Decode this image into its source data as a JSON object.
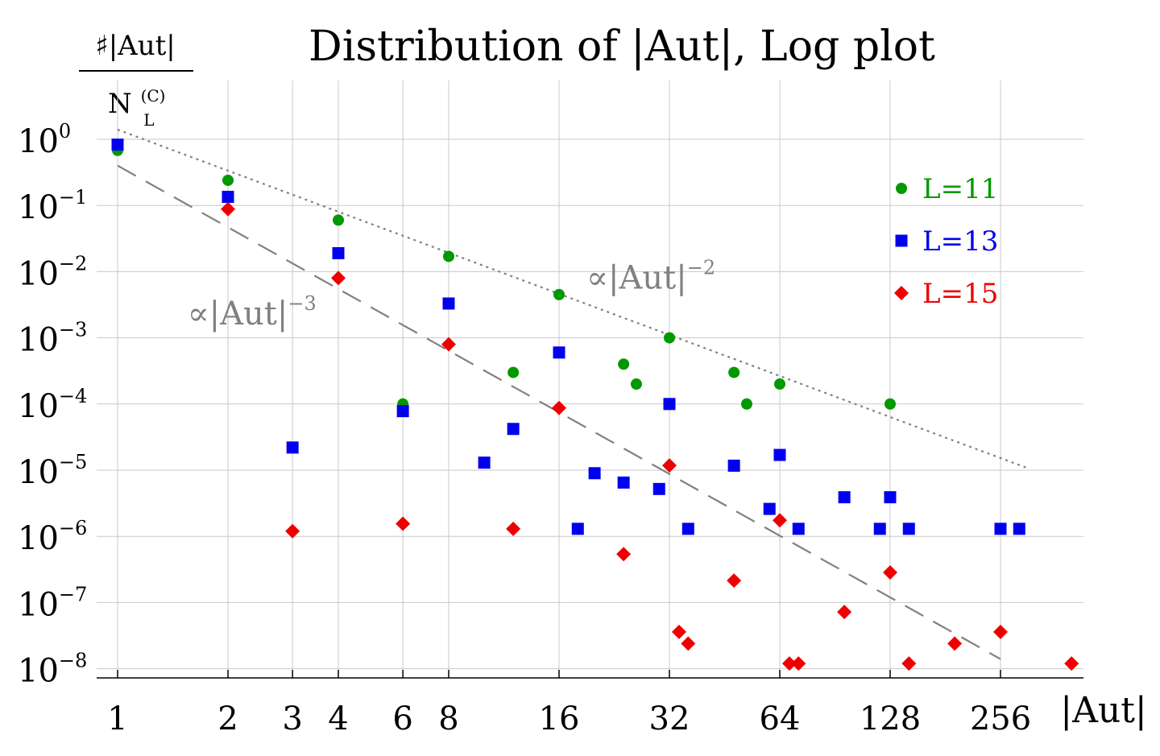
{
  "chart_data": {
    "type": "scatter",
    "title": "Distribution of |Aut|, Log plot",
    "ylabel": {
      "numerator": "♯|Aut|",
      "denominator_base": "N",
      "denominator_sup": "(C)",
      "denominator_sub": "L"
    },
    "xlabel": "|Aut|",
    "x_scale": "log2",
    "y_scale": "log10",
    "xlim": [
      0.95,
      420
    ],
    "ylim": [
      4.5e-09,
      4
    ],
    "x_ticks": [
      1,
      2,
      3,
      4,
      6,
      8,
      16,
      32,
      64,
      128,
      256
    ],
    "x_tick_labels": [
      "1",
      "2",
      "3",
      "4",
      "6",
      "8",
      "16",
      "32",
      "64",
      "128",
      "256"
    ],
    "y_ticks": [
      {
        "value": 1,
        "base": "10",
        "exp": "0"
      },
      {
        "value": 0.1,
        "base": "10",
        "exp": "−1"
      },
      {
        "value": 0.01,
        "base": "10",
        "exp": "−2"
      },
      {
        "value": 0.001,
        "base": "10",
        "exp": "−3"
      },
      {
        "value": 0.0001,
        "base": "10",
        "exp": "−4"
      },
      {
        "value": 1e-05,
        "base": "10",
        "exp": "−5"
      },
      {
        "value": 1e-06,
        "base": "10",
        "exp": "−6"
      },
      {
        "value": 1e-07,
        "base": "10",
        "exp": "−7"
      },
      {
        "value": 1e-08,
        "base": "10",
        "exp": "−8"
      }
    ],
    "grid": true,
    "legend_position": "top-right",
    "series": [
      {
        "name": "L=11",
        "color": "#009900",
        "marker": "circle",
        "points": [
          [
            1,
            0.68
          ],
          [
            2,
            0.24
          ],
          [
            4,
            0.06
          ],
          [
            6,
            0.0001
          ],
          [
            8,
            0.017
          ],
          [
            12,
            0.0003
          ],
          [
            16,
            0.0045
          ],
          [
            24,
            0.0004
          ],
          [
            26,
            0.0002
          ],
          [
            32,
            0.001
          ],
          [
            48,
            0.0003
          ],
          [
            52,
            0.0001
          ],
          [
            64,
            0.0002
          ],
          [
            128,
            0.0001
          ]
        ]
      },
      {
        "name": "L=13",
        "color": "#0000ee",
        "marker": "square",
        "points": [
          [
            1,
            0.83
          ],
          [
            2,
            0.135
          ],
          [
            3,
            2.2e-05
          ],
          [
            4,
            0.019
          ],
          [
            6,
            7.8e-05
          ],
          [
            8,
            0.0033
          ],
          [
            10,
            1.3e-05
          ],
          [
            12,
            4.2e-05
          ],
          [
            16,
            0.0006
          ],
          [
            18,
            1.3e-06
          ],
          [
            20,
            9e-06
          ],
          [
            24,
            6.5e-06
          ],
          [
            30,
            5.2e-06
          ],
          [
            32,
            0.0001
          ],
          [
            36,
            1.3e-06
          ],
          [
            48,
            1.17e-05
          ],
          [
            60,
            2.6e-06
          ],
          [
            64,
            1.7e-05
          ],
          [
            72,
            1.3e-06
          ],
          [
            96,
            3.9e-06
          ],
          [
            120,
            1.3e-06
          ],
          [
            128,
            3.9e-06
          ],
          [
            144,
            1.3e-06
          ],
          [
            256,
            1.3e-06
          ],
          [
            288,
            1.3e-06
          ]
        ]
      },
      {
        "name": "L=15",
        "color": "#ee0000",
        "marker": "diamond",
        "points": [
          [
            2,
            0.088
          ],
          [
            3,
            1.2e-06
          ],
          [
            4,
            0.008
          ],
          [
            6,
            1.55e-06
          ],
          [
            8,
            0.0008
          ],
          [
            12,
            1.3e-06
          ],
          [
            16,
            8.7e-05
          ],
          [
            24,
            5.4e-07
          ],
          [
            32,
            1.18e-05
          ],
          [
            34,
            3.6e-08
          ],
          [
            36,
            2.4e-08
          ],
          [
            48,
            2.15e-07
          ],
          [
            64,
            1.75e-06
          ],
          [
            68,
            1.2e-08
          ],
          [
            72,
            1.2e-08
          ],
          [
            96,
            7.2e-08
          ],
          [
            128,
            2.85e-07
          ],
          [
            144,
            1.2e-08
          ],
          [
            192,
            2.4e-08
          ],
          [
            256,
            3.6e-08
          ],
          [
            400,
            1.2e-08
          ]
        ]
      }
    ],
    "guides": [
      {
        "label_base": "∝|Aut|",
        "label_exp": "−2",
        "style": "dotted",
        "color": "#808080",
        "x": [
          1,
          300
        ],
        "y": [
          1.4,
          1.1e-05
        ],
        "label_at": [
          19,
          0.0055
        ]
      },
      {
        "label_base": "∝|Aut|",
        "label_exp": "−3",
        "style": "dashed",
        "color": "#808080",
        "x": [
          1,
          256
        ],
        "y": [
          0.4,
          1.4e-08
        ],
        "label_at": [
          1.55,
          0.0016
        ]
      }
    ]
  }
}
